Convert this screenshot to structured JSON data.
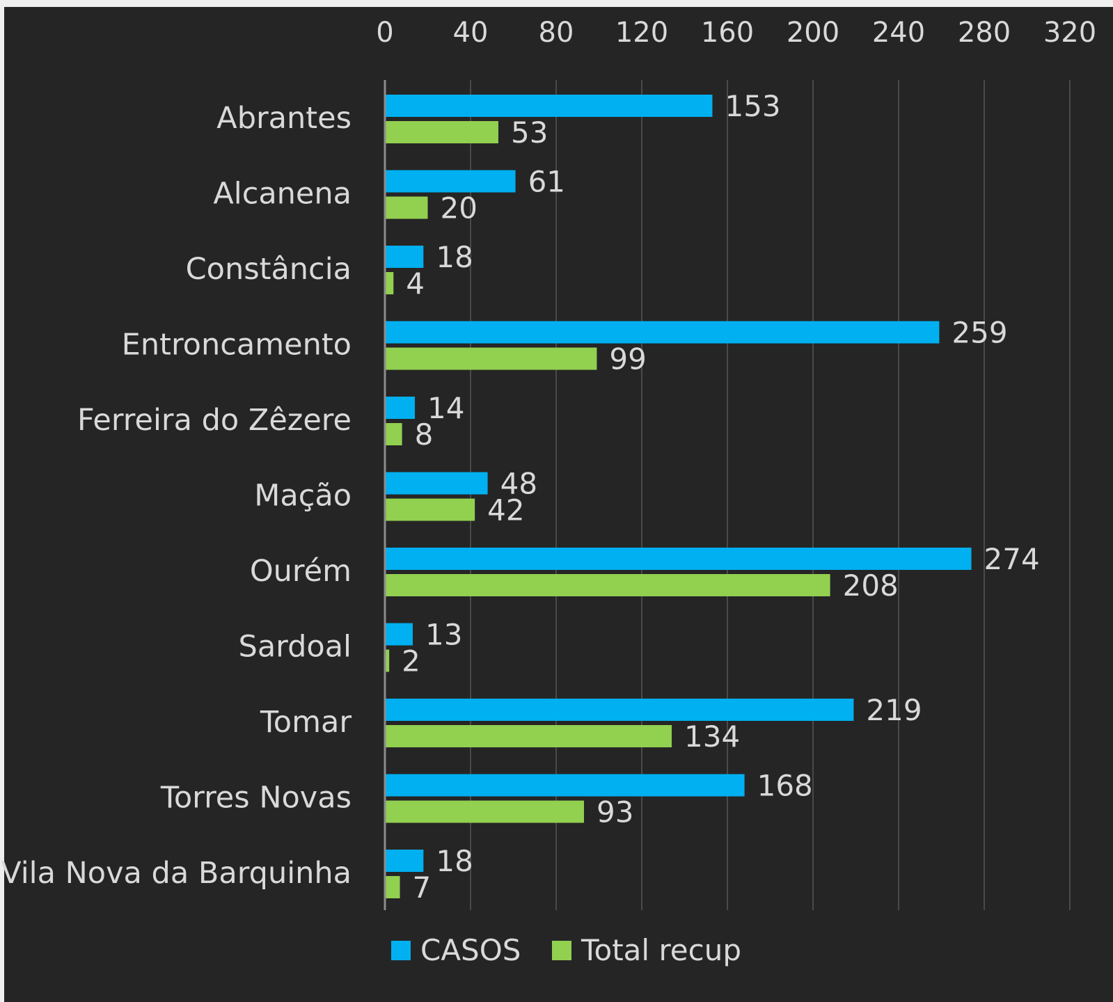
{
  "chart_data": {
    "type": "bar",
    "orientation": "horizontal",
    "categories": [
      "Abrantes",
      "Alcanena",
      "Constância",
      "Entroncamento",
      "Ferreira do Zêzere",
      "Mação",
      "Ourém",
      "Sardoal",
      "Tomar",
      "Torres Novas",
      "Vila Nova da Barquinha"
    ],
    "series": [
      {
        "name": "CASOS",
        "color": "#00b0f0",
        "values": [
          153,
          61,
          18,
          259,
          14,
          48,
          274,
          13,
          219,
          168,
          18
        ]
      },
      {
        "name": "Total recup",
        "color": "#92d050",
        "values": [
          53,
          20,
          4,
          99,
          8,
          42,
          208,
          2,
          134,
          93,
          7
        ]
      }
    ],
    "x_ticks": [
      "0",
      "40",
      "80",
      "120",
      "160",
      "200",
      "240",
      "280",
      "320"
    ],
    "xlim": [
      0,
      320
    ],
    "x_axis_position": "top",
    "grid": true,
    "legend_position": "bottom",
    "background_color": "#252525",
    "title": "",
    "xlabel": "",
    "ylabel": ""
  }
}
